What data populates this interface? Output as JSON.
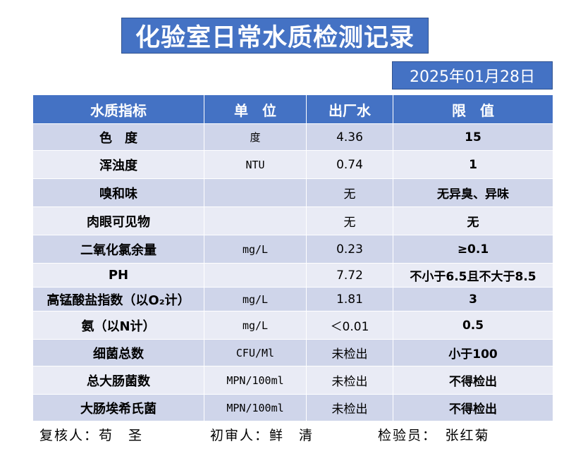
{
  "title": "化验室日常水质检测记录",
  "date": "2025年01月28日",
  "table": {
    "headers": [
      "水质指标",
      "单　位",
      "出厂水",
      "限　值"
    ],
    "rows": [
      {
        "name": "色　度",
        "unit": "度",
        "value": "4.36",
        "limit": "15"
      },
      {
        "name": "浑浊度",
        "unit": "NTU",
        "value": "0.74",
        "limit": "1"
      },
      {
        "name": "嗅和味",
        "unit": "",
        "value": "无",
        "limit": "无异臭、异味"
      },
      {
        "name": "肉眼可见物",
        "unit": "",
        "value": "无",
        "limit": "无"
      },
      {
        "name": "二氧化氯余量",
        "unit": "mg/L",
        "value": "0.23",
        "limit": "≥0.1"
      },
      {
        "name": "PH",
        "unit": "",
        "value": "7.72",
        "limit": "不小于6.5且不大于8.5"
      },
      {
        "name": "高锰酸盐指数（以O₂计）",
        "unit": "mg/L",
        "value": "1.81",
        "limit": "3"
      },
      {
        "name": "氨（以N计）",
        "unit": "mg/L",
        "value": "＜0.01",
        "limit": "0.5"
      },
      {
        "name": "细菌总数",
        "unit": "CFU/Ml",
        "value": "未检出",
        "limit": "小于100"
      },
      {
        "name": "总大肠菌数",
        "unit": "MPN/100ml",
        "value": "未检出",
        "limit": "不得检出"
      },
      {
        "name": "大肠埃希氏菌",
        "unit": "MPN/100ml",
        "value": "未检出",
        "limit": "不得检出"
      }
    ]
  },
  "footer": {
    "reviewer": "复核人：苟　圣",
    "first_reviewer": "初审人：鲜　清",
    "inspector": "检验员：　张红菊"
  }
}
